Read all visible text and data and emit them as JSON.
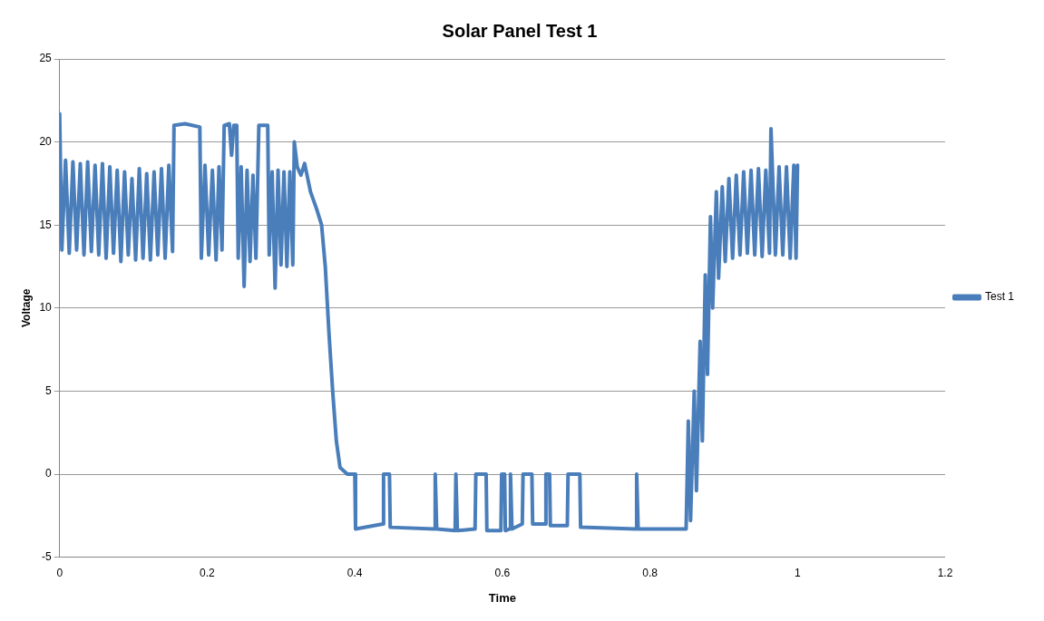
{
  "chart_data": {
    "type": "line",
    "title": "Solar Panel Test 1",
    "xlabel": "Time",
    "ylabel": "Voltage",
    "xlim": [
      0,
      1.2
    ],
    "xticks": [
      0,
      0.2,
      0.4,
      0.6,
      0.8,
      1,
      1.2
    ],
    "ylim": [
      -5,
      25
    ],
    "yticks": [
      -5,
      0,
      5,
      10,
      15,
      20,
      25
    ],
    "grid": "y",
    "legend": "right",
    "marker": "none",
    "line_style": "solid",
    "series": [
      {
        "name": "Test 1",
        "color": "#4a7ebb",
        "x": [
          0,
          0.003,
          0.008,
          0.013,
          0.018,
          0.023,
          0.028,
          0.033,
          0.038,
          0.043,
          0.048,
          0.053,
          0.058,
          0.063,
          0.068,
          0.073,
          0.078,
          0.083,
          0.088,
          0.093,
          0.098,
          0.103,
          0.108,
          0.113,
          0.118,
          0.123,
          0.128,
          0.133,
          0.138,
          0.143,
          0.148,
          0.153,
          0.155,
          0.17,
          0.19,
          0.192,
          0.197,
          0.202,
          0.207,
          0.212,
          0.216,
          0.22,
          0.223,
          0.23,
          0.233,
          0.236,
          0.24,
          0.242,
          0.246,
          0.25,
          0.254,
          0.258,
          0.262,
          0.266,
          0.27,
          0.282,
          0.284,
          0.288,
          0.292,
          0.296,
          0.3,
          0.304,
          0.308,
          0.312,
          0.316,
          0.318,
          0.322,
          0.327,
          0.332,
          0.34,
          0.348,
          0.355,
          0.36,
          0.365,
          0.37,
          0.375,
          0.38,
          0.39,
          0.4,
          0.401,
          0.438,
          0.439,
          0.447,
          0.448,
          0.508,
          0.509,
          0.511,
          0.536,
          0.537,
          0.539,
          0.563,
          0.564,
          0.578,
          0.579,
          0.598,
          0.599,
          0.603,
          0.604,
          0.61,
          0.611,
          0.613,
          0.627,
          0.628,
          0.64,
          0.641,
          0.658,
          0.659,
          0.664,
          0.665,
          0.688,
          0.689,
          0.705,
          0.706,
          0.781,
          0.782,
          0.784,
          0.849,
          0.852,
          0.855,
          0.86,
          0.863,
          0.868,
          0.871,
          0.875,
          0.878,
          0.882,
          0.885,
          0.89,
          0.893,
          0.898,
          0.902,
          0.907,
          0.912,
          0.917,
          0.922,
          0.927,
          0.932,
          0.937,
          0.942,
          0.947,
          0.952,
          0.957,
          0.962,
          0.964,
          0.966,
          0.97,
          0.975,
          0.98,
          0.985,
          0.99,
          0.995,
          0.998,
          1
        ],
        "values": [
          21.7,
          13.5,
          18.9,
          13.3,
          18.8,
          13.5,
          18.7,
          13.2,
          18.8,
          13.4,
          18.6,
          13.2,
          18.7,
          13,
          18.5,
          13.3,
          18.3,
          12.8,
          18.2,
          13.2,
          17.8,
          12.9,
          18.4,
          13,
          18.1,
          12.9,
          18.2,
          13.2,
          18.4,
          13,
          18.6,
          13.4,
          21,
          21.1,
          20.9,
          13,
          18.6,
          13.2,
          18.3,
          12.9,
          18.5,
          13.5,
          21,
          21.1,
          19.2,
          21,
          21,
          13,
          18.5,
          11.3,
          18.3,
          12.8,
          18,
          13,
          21,
          21,
          13.2,
          18.2,
          11.2,
          18.3,
          12.6,
          18.2,
          12.5,
          18.2,
          12.6,
          20,
          18.5,
          18,
          18.7,
          17,
          16,
          15,
          12.5,
          8.5,
          5,
          2,
          0.4,
          0,
          0,
          -3.3,
          -3,
          0,
          0,
          -3.2,
          -3.3,
          0,
          -3.3,
          -3.4,
          0,
          -3.4,
          -3.3,
          0,
          0,
          -3.4,
          -3.4,
          0,
          0,
          -3.4,
          -3.3,
          0,
          -3.3,
          -3,
          0,
          0,
          -3,
          -3,
          0,
          0,
          -3.1,
          -3.1,
          0,
          0,
          -3.2,
          -3.3,
          0,
          -3.3,
          -3.3,
          3.2,
          -2.8,
          5,
          -1,
          8,
          2,
          12,
          6,
          15.5,
          10,
          17,
          11.8,
          17.3,
          12.8,
          17.8,
          13,
          18,
          13.2,
          18.2,
          13.3,
          18.3,
          13.2,
          18.4,
          13.1,
          18.3,
          13.3,
          20.8,
          18.3,
          13.2,
          18.5,
          13.2,
          18.5,
          13,
          18.6,
          13,
          18.6
        ]
      }
    ]
  }
}
